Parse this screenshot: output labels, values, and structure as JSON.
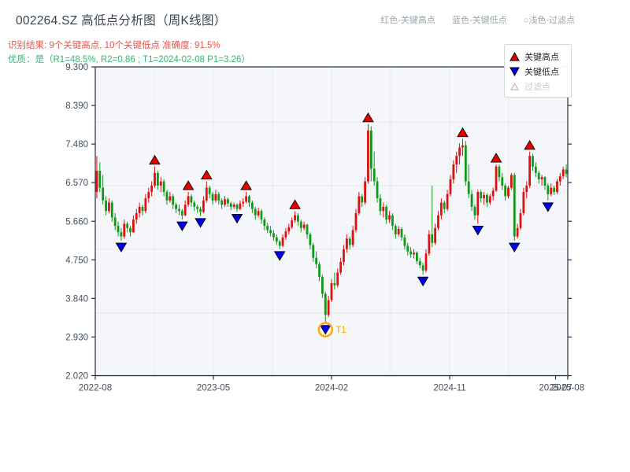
{
  "header": {
    "title": "002264.SZ 高低点分析图（周K线图）",
    "result_line": "识别结果: 9个关键高点, 10个关键低点  准确度: 91.5%",
    "quality_line": "优质：是（R1=48.5%, R2=0.86 ; T1=2024-02-08 P1=3.26）",
    "note_high": "红色-关键高点",
    "note_low": "蓝色-关键低点",
    "note_filtered": "○浅色-过滤点"
  },
  "legend": {
    "high_label": "关键高点",
    "low_label": "关键低点",
    "filtered_label": "过滤点"
  },
  "colors": {
    "up": "#e01010",
    "down": "#0f9918",
    "marker_high": "#e60000",
    "marker_low": "#0000ee",
    "marker_edge": "#000000",
    "filtered_fill": "#ffffff",
    "filtered_edge": "#cc9999",
    "t1": "#ffa500",
    "plot_bg": "#f4f6fa",
    "grid": "#e4e8ef",
    "spine": "#25313f",
    "tick_label": "#44505c"
  },
  "chart_data": {
    "type": "candlestick",
    "frequency": "weekly",
    "title": "002264.SZ 高低点分析图（周K线图）",
    "ylim": [
      2.02,
      9.3
    ],
    "y_tick_labels": [
      "9.300",
      "8.390",
      "7.480",
      "6.570",
      "5.660",
      "4.750",
      "3.840",
      "2.930",
      "2.020"
    ],
    "y_gridlines": [
      8.0,
      6.5,
      5.0,
      3.5,
      2.0
    ],
    "x_ticks": [
      {
        "label": "2022-08",
        "pos": -0.5
      },
      {
        "label": "2023-05",
        "pos": 38.25
      },
      {
        "label": "2024-02",
        "pos": 77.0
      },
      {
        "label": "2024-11",
        "pos": 115.75
      },
      {
        "label": "2025-07",
        "pos": 150.5
      },
      {
        "label": "2025-08",
        "pos": 154.5
      }
    ],
    "candles": [
      [
        6.35,
        7.2,
        6.2,
        6.85
      ],
      [
        6.85,
        7.05,
        6.35,
        6.45
      ],
      [
        6.45,
        6.75,
        6.05,
        6.15
      ],
      [
        6.15,
        6.25,
        5.8,
        5.9
      ],
      [
        5.9,
        6.2,
        5.85,
        6.1
      ],
      [
        6.1,
        6.15,
        5.65,
        5.75
      ],
      [
        5.75,
        5.85,
        5.45,
        5.55
      ],
      [
        5.55,
        5.65,
        5.3,
        5.4
      ],
      [
        5.4,
        5.5,
        5.2,
        5.3
      ],
      [
        5.3,
        5.7,
        5.25,
        5.6
      ],
      [
        5.6,
        5.65,
        5.4,
        5.5
      ],
      [
        5.5,
        5.55,
        5.3,
        5.4
      ],
      [
        5.4,
        5.8,
        5.38,
        5.7
      ],
      [
        5.7,
        5.95,
        5.6,
        5.85
      ],
      [
        5.85,
        6.1,
        5.75,
        6.0
      ],
      [
        6.0,
        6.05,
        5.8,
        5.9
      ],
      [
        5.9,
        6.3,
        5.85,
        6.2
      ],
      [
        6.2,
        6.45,
        6.1,
        6.35
      ],
      [
        6.35,
        6.6,
        6.25,
        6.5
      ],
      [
        6.5,
        6.95,
        6.45,
        6.8
      ],
      [
        6.8,
        6.85,
        6.4,
        6.5
      ],
      [
        6.5,
        6.7,
        6.35,
        6.6
      ],
      [
        6.6,
        6.65,
        6.25,
        6.35
      ],
      [
        6.35,
        6.4,
        6.05,
        6.15
      ],
      [
        6.15,
        6.35,
        6.1,
        6.25
      ],
      [
        6.25,
        6.3,
        5.95,
        6.05
      ],
      [
        6.05,
        6.1,
        5.85,
        5.95
      ],
      [
        5.95,
        6.05,
        5.8,
        5.9
      ],
      [
        5.9,
        5.95,
        5.7,
        5.8
      ],
      [
        5.8,
        6.15,
        5.78,
        6.05
      ],
      [
        6.05,
        6.35,
        6.0,
        6.25
      ],
      [
        6.25,
        6.3,
        6.0,
        6.1
      ],
      [
        6.1,
        6.15,
        5.9,
        6.0
      ],
      [
        6.0,
        6.05,
        5.85,
        5.95
      ],
      [
        5.95,
        6.0,
        5.78,
        5.88
      ],
      [
        5.88,
        6.25,
        5.85,
        6.15
      ],
      [
        6.15,
        6.6,
        6.1,
        6.45
      ],
      [
        6.45,
        6.5,
        6.2,
        6.3
      ],
      [
        6.3,
        6.35,
        6.05,
        6.15
      ],
      [
        6.15,
        6.4,
        6.1,
        6.3
      ],
      [
        6.3,
        6.35,
        6.05,
        6.15
      ],
      [
        6.15,
        6.2,
        5.95,
        6.05
      ],
      [
        6.05,
        6.25,
        6.0,
        6.18
      ],
      [
        6.18,
        6.22,
        6.0,
        6.08
      ],
      [
        6.08,
        6.12,
        5.92,
        6.0
      ],
      [
        6.0,
        6.1,
        5.95,
        6.05
      ],
      [
        6.05,
        6.08,
        5.88,
        5.95
      ],
      [
        5.95,
        6.15,
        5.92,
        6.08
      ],
      [
        6.08,
        6.2,
        6.0,
        6.12
      ],
      [
        6.12,
        6.35,
        6.08,
        6.25
      ],
      [
        6.25,
        6.28,
        6.0,
        6.1
      ],
      [
        6.1,
        6.15,
        5.85,
        5.95
      ],
      [
        5.95,
        6.0,
        5.7,
        5.8
      ],
      [
        5.8,
        5.98,
        5.75,
        5.9
      ],
      [
        5.9,
        5.95,
        5.6,
        5.7
      ],
      [
        5.7,
        5.75,
        5.45,
        5.55
      ],
      [
        5.55,
        5.62,
        5.38,
        5.45
      ],
      [
        5.45,
        5.55,
        5.3,
        5.38
      ],
      [
        5.38,
        5.45,
        5.2,
        5.28
      ],
      [
        5.28,
        5.35,
        5.1,
        5.18
      ],
      [
        5.18,
        5.22,
        5.0,
        5.08
      ],
      [
        5.08,
        5.35,
        5.05,
        5.28
      ],
      [
        5.28,
        5.5,
        5.22,
        5.42
      ],
      [
        5.42,
        5.6,
        5.35,
        5.52
      ],
      [
        5.52,
        5.75,
        5.48,
        5.68
      ],
      [
        5.68,
        5.9,
        5.62,
        5.8
      ],
      [
        5.8,
        5.85,
        5.55,
        5.65
      ],
      [
        5.65,
        5.7,
        5.4,
        5.5
      ],
      [
        5.5,
        5.65,
        5.45,
        5.58
      ],
      [
        5.58,
        5.6,
        5.25,
        5.35
      ],
      [
        5.35,
        5.4,
        5.0,
        5.1
      ],
      [
        5.1,
        5.15,
        4.7,
        4.8
      ],
      [
        4.8,
        4.95,
        4.55,
        4.65
      ],
      [
        4.65,
        4.7,
        4.25,
        4.35
      ],
      [
        4.35,
        4.4,
        3.85,
        3.95
      ],
      [
        3.95,
        4.0,
        3.26,
        3.45
      ],
      [
        3.45,
        3.9,
        3.4,
        3.8
      ],
      [
        3.8,
        4.3,
        3.75,
        4.2
      ],
      [
        4.2,
        4.45,
        4.05,
        4.15
      ],
      [
        4.15,
        4.55,
        4.1,
        4.45
      ],
      [
        4.45,
        4.8,
        4.4,
        4.7
      ],
      [
        4.7,
        5.1,
        4.62,
        5.0
      ],
      [
        5.0,
        5.35,
        4.92,
        5.25
      ],
      [
        5.25,
        5.3,
        5.0,
        5.1
      ],
      [
        5.1,
        5.55,
        5.05,
        5.45
      ],
      [
        5.45,
        5.95,
        5.4,
        5.85
      ],
      [
        5.85,
        6.35,
        5.8,
        6.25
      ],
      [
        6.25,
        6.3,
        6.0,
        6.1
      ],
      [
        6.1,
        6.7,
        6.05,
        6.6
      ],
      [
        6.6,
        7.95,
        6.55,
        7.8
      ],
      [
        7.8,
        7.9,
        6.6,
        6.9
      ],
      [
        6.9,
        7.3,
        6.5,
        6.6
      ],
      [
        6.6,
        6.7,
        6.1,
        6.2
      ],
      [
        6.2,
        6.3,
        5.8,
        5.9
      ],
      [
        5.9,
        6.1,
        5.75,
        6.0
      ],
      [
        6.0,
        6.05,
        5.6,
        5.7
      ],
      [
        5.7,
        5.9,
        5.62,
        5.8
      ],
      [
        5.8,
        5.85,
        5.45,
        5.55
      ],
      [
        5.55,
        5.6,
        5.25,
        5.35
      ],
      [
        5.35,
        5.55,
        5.3,
        5.48
      ],
      [
        5.48,
        5.52,
        5.2,
        5.28
      ],
      [
        5.28,
        5.35,
        5.0,
        5.08
      ],
      [
        5.08,
        5.15,
        4.85,
        4.95
      ],
      [
        4.95,
        5.05,
        4.8,
        4.88
      ],
      [
        4.88,
        5.0,
        4.78,
        4.92
      ],
      [
        4.92,
        4.95,
        4.65,
        4.72
      ],
      [
        4.72,
        4.8,
        4.55,
        4.62
      ],
      [
        4.62,
        4.68,
        4.4,
        4.5
      ],
      [
        4.5,
        5.0,
        4.45,
        4.9
      ],
      [
        4.9,
        5.45,
        4.85,
        5.35
      ],
      [
        5.35,
        6.5,
        5.05,
        5.15
      ],
      [
        5.15,
        5.6,
        5.1,
        5.5
      ],
      [
        5.5,
        5.9,
        5.45,
        5.8
      ],
      [
        5.8,
        6.2,
        5.7,
        6.1
      ],
      [
        6.1,
        6.15,
        5.85,
        5.95
      ],
      [
        5.95,
        6.4,
        5.9,
        6.3
      ],
      [
        6.3,
        6.75,
        6.25,
        6.65
      ],
      [
        6.65,
        7.1,
        6.55,
        7.0
      ],
      [
        7.0,
        7.3,
        6.8,
        7.2
      ],
      [
        7.2,
        7.5,
        7.0,
        7.4
      ],
      [
        7.4,
        7.6,
        7.2,
        7.45
      ],
      [
        7.45,
        7.55,
        6.5,
        6.6
      ],
      [
        6.6,
        7.0,
        6.2,
        6.3
      ],
      [
        6.3,
        6.4,
        5.9,
        6.0
      ],
      [
        6.0,
        6.05,
        5.7,
        5.8
      ],
      [
        5.8,
        6.4,
        5.6,
        6.35
      ],
      [
        6.35,
        6.4,
        6.1,
        6.2
      ],
      [
        6.2,
        6.35,
        6.05,
        6.28
      ],
      [
        6.28,
        6.32,
        6.0,
        6.1
      ],
      [
        6.1,
        6.3,
        6.05,
        6.25
      ],
      [
        6.25,
        6.45,
        6.15,
        6.38
      ],
      [
        6.38,
        7.0,
        6.35,
        6.95
      ],
      [
        6.95,
        7.0,
        6.6,
        6.7
      ],
      [
        6.7,
        6.8,
        6.4,
        6.5
      ],
      [
        6.5,
        6.55,
        6.15,
        6.25
      ],
      [
        6.25,
        6.5,
        6.2,
        6.45
      ],
      [
        6.45,
        6.8,
        6.4,
        6.75
      ],
      [
        6.75,
        6.8,
        5.2,
        5.3
      ],
      [
        5.3,
        5.6,
        5.25,
        5.5
      ],
      [
        5.5,
        5.95,
        5.45,
        5.85
      ],
      [
        5.85,
        6.45,
        5.8,
        6.35
      ],
      [
        6.35,
        6.6,
        6.2,
        6.5
      ],
      [
        6.5,
        7.3,
        6.45,
        7.2
      ],
      [
        7.2,
        7.25,
        6.85,
        6.95
      ],
      [
        6.95,
        7.05,
        6.7,
        6.8
      ],
      [
        6.8,
        6.85,
        6.55,
        6.65
      ],
      [
        6.65,
        6.75,
        6.5,
        6.7
      ],
      [
        6.7,
        6.72,
        6.4,
        6.5
      ],
      [
        6.5,
        6.55,
        6.15,
        6.3
      ],
      [
        6.3,
        6.55,
        6.25,
        6.45
      ],
      [
        6.45,
        6.5,
        6.28,
        6.35
      ],
      [
        6.35,
        6.65,
        6.3,
        6.6
      ],
      [
        6.6,
        6.8,
        6.5,
        6.72
      ],
      [
        6.72,
        6.95,
        6.65,
        6.88
      ],
      [
        6.88,
        7.0,
        6.7,
        6.78
      ]
    ],
    "key_highs": [
      {
        "week": 19,
        "price": 6.95
      },
      {
        "week": 30,
        "price": 6.35
      },
      {
        "week": 36,
        "price": 6.6
      },
      {
        "week": 49,
        "price": 6.35
      },
      {
        "week": 65,
        "price": 5.9
      },
      {
        "week": 89,
        "price": 7.95
      },
      {
        "week": 120,
        "price": 7.6
      },
      {
        "week": 131,
        "price": 7.0
      },
      {
        "week": 142,
        "price": 7.3
      }
    ],
    "key_lows": [
      {
        "week": 8,
        "price": 5.2
      },
      {
        "week": 28,
        "price": 5.7
      },
      {
        "week": 34,
        "price": 5.78
      },
      {
        "week": 46,
        "price": 5.88
      },
      {
        "week": 60,
        "price": 5.0
      },
      {
        "week": 75,
        "price": 3.26
      },
      {
        "week": 107,
        "price": 4.4
      },
      {
        "week": 125,
        "price": 5.6
      },
      {
        "week": 137,
        "price": 5.2
      },
      {
        "week": 148,
        "price": 6.15
      }
    ],
    "t1_annotation": {
      "week": 75,
      "price": 3.26,
      "label": "T1"
    }
  }
}
